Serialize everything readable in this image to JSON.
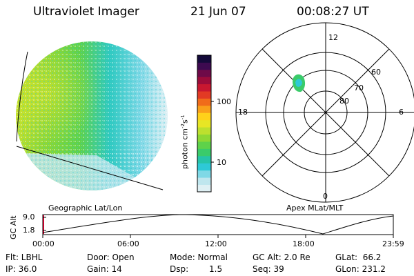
{
  "header": {
    "title": "Ultraviolet Imager",
    "date": "21 Jun 07",
    "time": "00:08:27 UT"
  },
  "colorbar": {
    "unit": "photon cm",
    "unit_exp1": "-2",
    "unit_s": "s",
    "unit_exp2": "-1",
    "ticks": [
      "100",
      "10"
    ],
    "colors": [
      "#dff0f4",
      "#bfe6ee",
      "#7fd8e6",
      "#2ec9d6",
      "#26c4a8",
      "#3acb6a",
      "#5ed24a",
      "#8ed834",
      "#bde02e",
      "#e7e625",
      "#ffd11a",
      "#f9a01a",
      "#f06c1a",
      "#e23a24",
      "#c81730",
      "#9c0c3a",
      "#6e0a48",
      "#3d0a50",
      "#140a3a"
    ]
  },
  "panels": {
    "left_caption": "Geographic Lat/Lon",
    "right_caption": "Apex MLat/MLT"
  },
  "polar": {
    "mlt_labels": {
      "top": "12",
      "left": "18",
      "right": "6",
      "bottom": "0"
    },
    "lat_labels": [
      "60",
      "70",
      "80"
    ]
  },
  "altitude": {
    "axis_label": "GC Alt",
    "ticks": [
      "9.0",
      "1.8"
    ],
    "time_ticks": [
      "00:00",
      "06:00",
      "12:00",
      "18:00",
      "23:59"
    ]
  },
  "footer": {
    "flt": "Flt: LBHL",
    "ip": "IP: 36.0",
    "door": "Door: Open",
    "gain": "Gain: 14",
    "mode": "Mode: Normal",
    "dsp_label": "Dsp:",
    "dsp_value": "1.5",
    "gc_alt": "GC Alt: 2.0 Re",
    "seq": "Seq: 39",
    "glat": "GLat:  66.2",
    "glon": "GLon: 231.2"
  }
}
